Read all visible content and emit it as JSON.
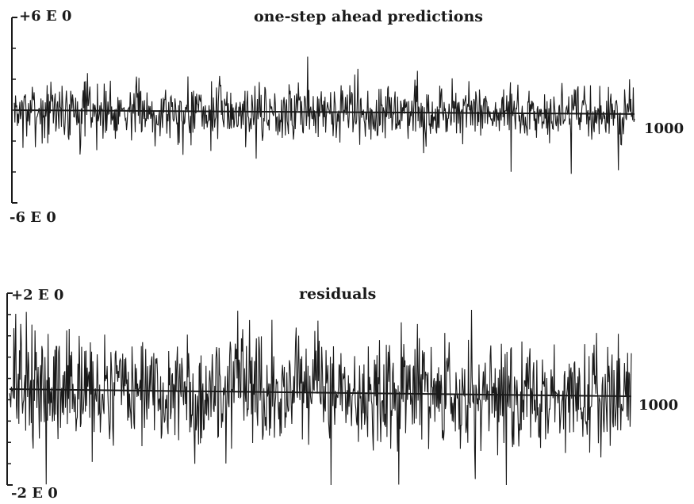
{
  "chart_data": [
    {
      "type": "line",
      "title": "one-step ahead predictions",
      "ymax_label": "+6 E 0",
      "ymin_label": "-6 E 0",
      "ylim": [
        -6,
        6
      ],
      "xlim": [
        0,
        1000
      ],
      "x_end_label": "1000",
      "trend": {
        "start": 0.0,
        "end": -0.25
      },
      "noise": {
        "amplitude": 0.9,
        "seed": 7
      },
      "series_color": "#1a1a1a",
      "grid": false
    },
    {
      "type": "line",
      "title": "residuals",
      "ymax_label": "+2 E 0",
      "ymin_label": "-2 E 0",
      "ylim": [
        -2,
        2
      ],
      "xlim": [
        0,
        1000
      ],
      "x_end_label": "1000",
      "trend": {
        "start": 0.0,
        "end": -0.15
      },
      "noise": {
        "amplitude": 0.95,
        "seed": 13
      },
      "series_color": "#1a1a1a",
      "grid": false
    }
  ]
}
